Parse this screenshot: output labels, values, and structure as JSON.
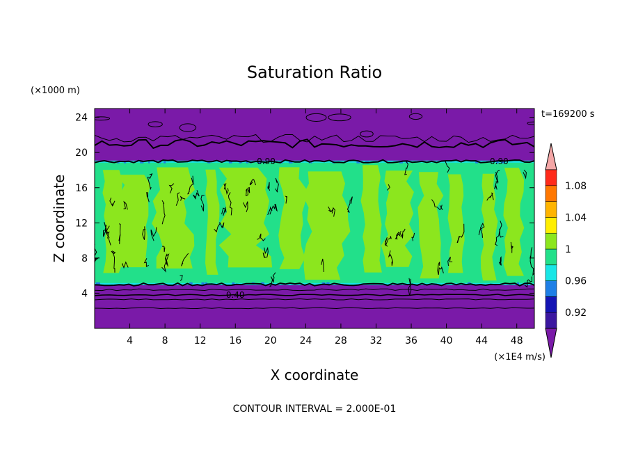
{
  "chart_data": {
    "type": "heatmap",
    "title": "Saturation Ratio",
    "xlabel": "X coordinate",
    "ylabel": "Z coordinate",
    "x_unit": "(×1E4 m/s)",
    "y_unit": "(×1000 m)",
    "xlim": [
      0,
      50
    ],
    "ylim": [
      0,
      25
    ],
    "x_ticks": [
      4,
      8,
      12,
      16,
      20,
      24,
      28,
      32,
      36,
      40,
      44,
      48
    ],
    "y_ticks": [
      4,
      8,
      12,
      16,
      20,
      24
    ],
    "time_label": "t=169200 s",
    "footer": "CONTOUR INTERVAL = 2.000E-01",
    "contour_labels": [
      {
        "text": "0.90",
        "x": 19.5,
        "z": 19.0
      },
      {
        "text": "0.90",
        "x": 46.0,
        "z": 19.0
      },
      {
        "text": "0.40",
        "x": 16.0,
        "z": 3.8
      }
    ],
    "layers": [
      {
        "z_bottom": 0.0,
        "z_top": 5.0,
        "level": "<0.90"
      },
      {
        "z_bottom": 5.0,
        "z_top": 19.0,
        "level": "0.98-1.00"
      },
      {
        "z_bottom": 19.0,
        "z_top": 25.0,
        "level": "<0.90"
      }
    ],
    "colorbar": {
      "labels": [
        "0.92",
        "0.96",
        "1",
        "1.04",
        "1.08"
      ],
      "bins": [
        {
          "range": "<0.90",
          "color": "#7a1aa8"
        },
        {
          "range": "0.90-0.92",
          "color": "#3b17a0"
        },
        {
          "range": "0.92-0.94",
          "color": "#1414b4"
        },
        {
          "range": "0.94-0.96",
          "color": "#1e7fe6"
        },
        {
          "range": "0.96-0.98",
          "color": "#18e6e6"
        },
        {
          "range": "0.98-1.00",
          "color": "#22e08a"
        },
        {
          "range": "1.00-1.02",
          "color": "#8ce61e"
        },
        {
          "range": "1.02-1.04",
          "color": "#ffee00"
        },
        {
          "range": "1.04-1.06",
          "color": "#ffb400"
        },
        {
          "range": "1.06-1.08",
          "color": "#ff7700"
        },
        {
          "range": "1.08-1.10",
          "color": "#ff2a1a"
        },
        {
          "range": ">1.10",
          "color": "#f4a6a6"
        }
      ]
    }
  }
}
